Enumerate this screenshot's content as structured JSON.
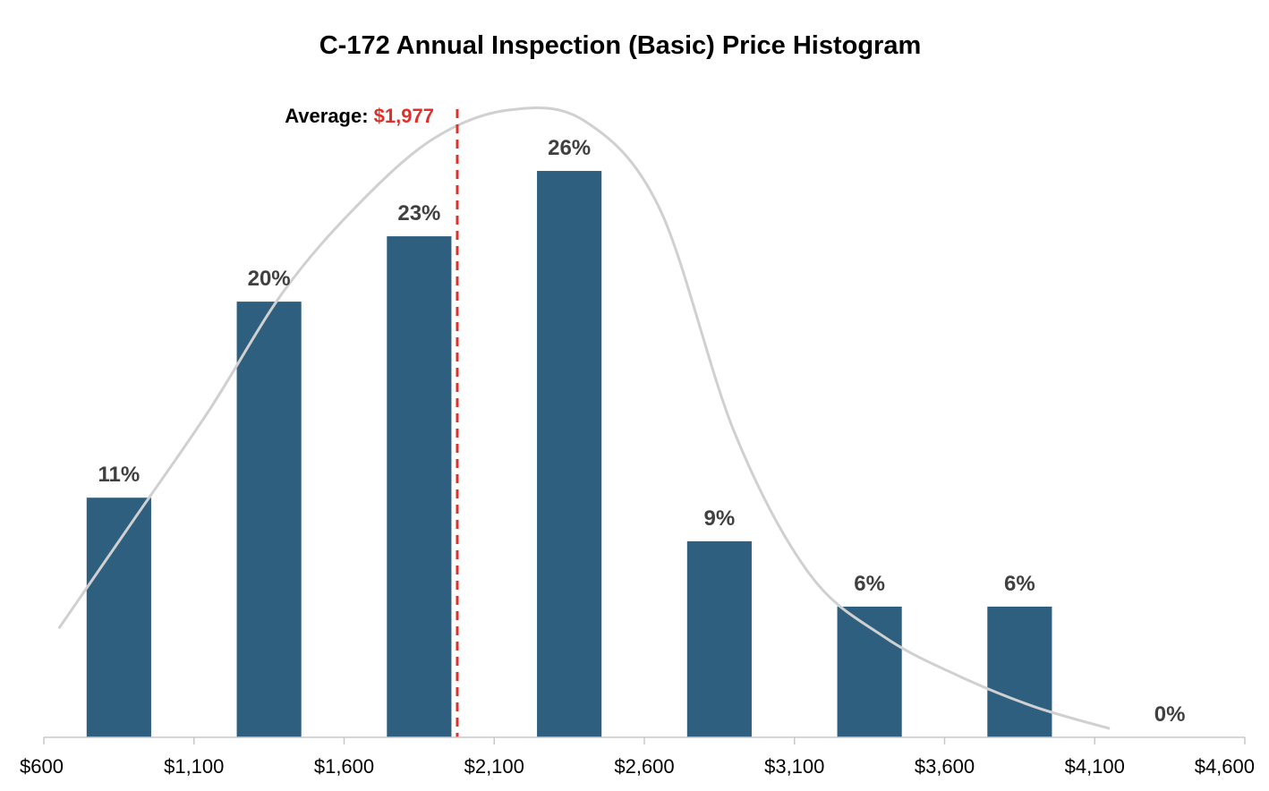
{
  "chart_data": {
    "type": "bar",
    "title": "C-172 Annual Inspection (Basic) Price Histogram",
    "xlabel": "",
    "ylabel": "",
    "x_ticks": [
      "$600",
      "$1,100",
      "$1,600",
      "$2,100",
      "$2,600",
      "$3,100",
      "$3,600",
      "$4,100",
      "$4,600"
    ],
    "x_tick_values": [
      600,
      1100,
      1600,
      2100,
      2600,
      3100,
      3600,
      4100,
      4600
    ],
    "xlim": [
      600,
      4600
    ],
    "ylim": [
      0,
      30
    ],
    "bins": [
      {
        "x": 850,
        "value": 11,
        "label": "11%"
      },
      {
        "x": 1350,
        "value": 20,
        "label": "20%"
      },
      {
        "x": 1850,
        "value": 23,
        "label": "23%"
      },
      {
        "x": 2350,
        "value": 26,
        "label": "26%"
      },
      {
        "x": 2850,
        "value": 9,
        "label": "9%"
      },
      {
        "x": 3350,
        "value": 6,
        "label": "6%"
      },
      {
        "x": 3850,
        "value": 6,
        "label": "6%"
      },
      {
        "x": 4350,
        "value": 0,
        "label": "0%"
      }
    ],
    "bar_width": 215,
    "average": {
      "label": "Average: ",
      "value": 1977,
      "value_text": "$1,977"
    },
    "curve": {
      "x": [
        650,
        900,
        1150,
        1400,
        1650,
        1900,
        2150,
        2400,
        2650,
        2900,
        3150,
        3400,
        3650,
        3900,
        4150
      ],
      "y": [
        5,
        10,
        15,
        20.5,
        24.5,
        27.5,
        28.8,
        28.3,
        24.3,
        14,
        7.5,
        4.6,
        2.8,
        1.4,
        0.4
      ]
    },
    "colors": {
      "bar": "#2e5f7f",
      "curve": "#d0d0d0",
      "average_line": "#e0302b",
      "data_label": "#404040",
      "axis": "#c8c8c8"
    },
    "grid": false,
    "legend": "none"
  }
}
